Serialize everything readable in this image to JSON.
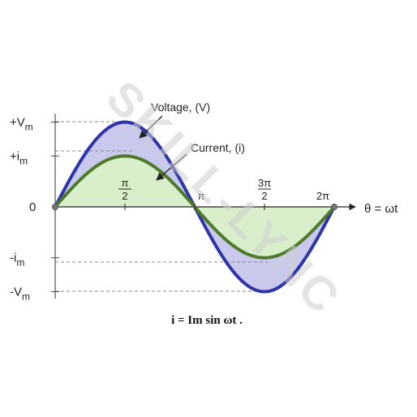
{
  "watermark": "SKILL-LYNC",
  "formula": "i = Im sin ωt .",
  "chart_data": {
    "type": "line",
    "title": "",
    "xlabel": "θ = ωt",
    "ylabel": "",
    "x_ticks": [
      {
        "value": 1.5708,
        "num": "π",
        "den": "2"
      },
      {
        "value": 3.1416,
        "label": "π"
      },
      {
        "value": 4.7124,
        "num": "3π",
        "den": "2"
      },
      {
        "value": 6.2832,
        "label": "2π"
      }
    ],
    "y_ticks": [
      {
        "value": 1.0,
        "main": "+V",
        "sub": "m"
      },
      {
        "value": 0.6,
        "main": "+i",
        "sub": "m"
      },
      {
        "value": 0,
        "main": "0",
        "sub": ""
      },
      {
        "value": -0.6,
        "main": "-i",
        "sub": "m"
      },
      {
        "value": -1.0,
        "main": "-V",
        "sub": "m"
      }
    ],
    "xlim": [
      0,
      6.2832
    ],
    "ylim": [
      -1.0,
      1.0
    ],
    "series": [
      {
        "name": "Voltage, (V)",
        "amplitude": 1.0,
        "color": "#2e35a8",
        "fill": "#c9c9ee"
      },
      {
        "name": "Current, (i)",
        "amplitude": 0.6,
        "color": "#4f7a2c",
        "fill": "#d9efcc"
      }
    ]
  }
}
